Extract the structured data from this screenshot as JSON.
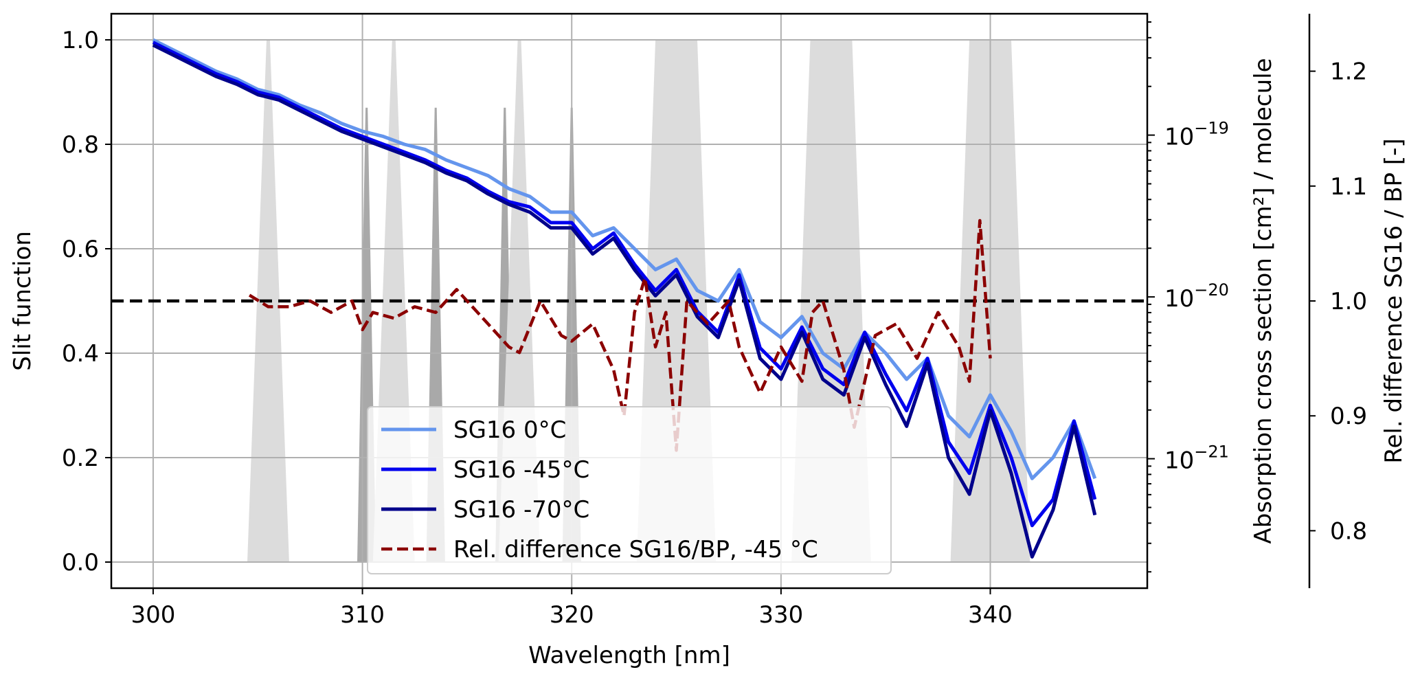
{
  "chart_data": {
    "type": "line",
    "xlabel": "Wavelength [nm]",
    "ylabel_left": "Slit function",
    "ylabel_right1": "Absorption cross section [cm²] / molecule",
    "ylabel_right2": "Rel. difference SG16 / BP [-]",
    "xlim": [
      298,
      347.5
    ],
    "ylim_left": [
      -0.05,
      1.05
    ],
    "ylim_right1_log10": [
      -21.8,
      -18.25
    ],
    "ylim_right2": [
      0.75,
      1.25
    ],
    "grid": true,
    "legend_position": "lower-center",
    "x_ticks": [
      "300",
      "310",
      "320",
      "330",
      "340"
    ],
    "y_left_ticks": [
      "0.0",
      "0.2",
      "0.4",
      "0.6",
      "0.8",
      "1.0"
    ],
    "y_right1_ticks": [
      {
        "base": "10",
        "exp": "−21",
        "log10": -21
      },
      {
        "base": "10",
        "exp": "−20",
        "log10": -20
      },
      {
        "base": "10",
        "exp": "−19",
        "log10": -19
      }
    ],
    "y_right2_ticks": [
      "0.8",
      "0.9",
      "1.0",
      "1.1",
      "1.2"
    ],
    "reference_line": {
      "value": 0.5,
      "axis": "left",
      "color": "#000000",
      "style": "dashed"
    },
    "slit_functions": [
      {
        "center": 305.5,
        "base_half_width": 1.0,
        "top_half_width": 0.08,
        "peak": 1.0,
        "color": "#dcdcdc"
      },
      {
        "center": 310.2,
        "base_half_width": 0.45,
        "top_half_width": 0.05,
        "peak": 0.87,
        "color": "#a9a9a9"
      },
      {
        "center": 311.5,
        "base_half_width": 1.0,
        "top_half_width": 0.08,
        "peak": 1.0,
        "color": "#dcdcdc"
      },
      {
        "center": 313.5,
        "base_half_width": 0.45,
        "top_half_width": 0.05,
        "peak": 0.87,
        "color": "#a9a9a9"
      },
      {
        "center": 316.8,
        "base_half_width": 0.45,
        "top_half_width": 0.05,
        "peak": 0.87,
        "color": "#a9a9a9"
      },
      {
        "center": 317.5,
        "base_half_width": 1.0,
        "top_half_width": 0.08,
        "peak": 1.0,
        "color": "#dcdcdc"
      },
      {
        "center": 320.0,
        "base_half_width": 0.45,
        "top_half_width": 0.05,
        "peak": 0.87,
        "color": "#a9a9a9"
      },
      {
        "center": 325.0,
        "base_half_width": 1.9,
        "top_half_width": 1.0,
        "peak": 1.0,
        "color": "#dcdcdc"
      },
      {
        "center": 332.4,
        "base_half_width": 1.9,
        "top_half_width": 1.0,
        "peak": 1.0,
        "color": "#dcdcdc"
      },
      {
        "center": 340.0,
        "base_half_width": 1.9,
        "top_half_width": 1.0,
        "peak": 1.0,
        "color": "#dcdcdc"
      }
    ],
    "series": [
      {
        "name": "SG16 0°C",
        "color": "#6495ed",
        "style": "solid",
        "axis": "left",
        "x": [
          300,
          301,
          302,
          303,
          304,
          305,
          306,
          307,
          308,
          309,
          310,
          311,
          312,
          313,
          314,
          315,
          316,
          317,
          318,
          319,
          320,
          321,
          322,
          323,
          324,
          325,
          326,
          327,
          328,
          329,
          330,
          331,
          332,
          333,
          334,
          335,
          336,
          337,
          338,
          339,
          340,
          341,
          342,
          343,
          344,
          345
        ],
        "values": [
          1.0,
          0.98,
          0.96,
          0.94,
          0.925,
          0.905,
          0.895,
          0.875,
          0.86,
          0.84,
          0.825,
          0.815,
          0.8,
          0.79,
          0.77,
          0.755,
          0.74,
          0.715,
          0.7,
          0.67,
          0.67,
          0.625,
          0.64,
          0.6,
          0.56,
          0.58,
          0.52,
          0.5,
          0.56,
          0.46,
          0.43,
          0.47,
          0.4,
          0.37,
          0.44,
          0.4,
          0.35,
          0.39,
          0.28,
          0.24,
          0.32,
          0.25,
          0.16,
          0.2,
          0.27,
          0.16
        ]
      },
      {
        "name": "SG16 -45°C",
        "color": "#0000ee",
        "style": "solid",
        "axis": "left",
        "x": [
          300,
          301,
          302,
          303,
          304,
          305,
          306,
          307,
          308,
          309,
          310,
          311,
          312,
          313,
          314,
          315,
          316,
          317,
          318,
          319,
          320,
          321,
          322,
          323,
          324,
          325,
          326,
          327,
          328,
          329,
          330,
          331,
          332,
          333,
          334,
          335,
          336,
          337,
          338,
          339,
          340,
          341,
          342,
          343,
          344,
          345
        ],
        "values": [
          0.995,
          0.975,
          0.955,
          0.935,
          0.92,
          0.9,
          0.89,
          0.87,
          0.85,
          0.83,
          0.815,
          0.8,
          0.785,
          0.77,
          0.75,
          0.735,
          0.71,
          0.69,
          0.68,
          0.65,
          0.65,
          0.6,
          0.63,
          0.57,
          0.52,
          0.56,
          0.48,
          0.44,
          0.55,
          0.41,
          0.37,
          0.45,
          0.37,
          0.34,
          0.44,
          0.36,
          0.29,
          0.39,
          0.23,
          0.17,
          0.3,
          0.2,
          0.07,
          0.12,
          0.27,
          0.12
        ]
      },
      {
        "name": "SG16 -70°C",
        "color": "#00008b",
        "style": "solid",
        "axis": "left",
        "x": [
          300,
          301,
          302,
          303,
          304,
          305,
          306,
          307,
          308,
          309,
          310,
          311,
          312,
          313,
          314,
          315,
          316,
          317,
          318,
          319,
          320,
          321,
          322,
          323,
          324,
          325,
          326,
          327,
          328,
          329,
          330,
          331,
          332,
          333,
          334,
          335,
          336,
          337,
          338,
          339,
          340,
          341,
          342,
          343,
          344,
          345
        ],
        "values": [
          0.99,
          0.97,
          0.95,
          0.93,
          0.915,
          0.895,
          0.885,
          0.865,
          0.845,
          0.825,
          0.81,
          0.795,
          0.78,
          0.765,
          0.745,
          0.73,
          0.705,
          0.685,
          0.67,
          0.64,
          0.64,
          0.59,
          0.62,
          0.56,
          0.51,
          0.55,
          0.47,
          0.43,
          0.54,
          0.39,
          0.35,
          0.44,
          0.35,
          0.32,
          0.43,
          0.34,
          0.26,
          0.38,
          0.2,
          0.13,
          0.29,
          0.17,
          0.01,
          0.1,
          0.26,
          0.09
        ]
      },
      {
        "name": "Rel. difference SG16/BP, -45 °C",
        "color": "#8b0000",
        "style": "dashed",
        "axis": "right2",
        "x": [
          304.6,
          305.5,
          306.5,
          307.5,
          308.5,
          309.5,
          310.0,
          310.5,
          311.5,
          312.5,
          313.5,
          314.5,
          315.0,
          316.0,
          317.0,
          317.5,
          318.5,
          319.5,
          320.0,
          321.0,
          322.0,
          322.5,
          323.0,
          323.5,
          324.0,
          324.5,
          325.0,
          325.5,
          326.5,
          327.5,
          328.0,
          329.0,
          330.0,
          331.0,
          331.5,
          332.0,
          333.0,
          333.5,
          334.5,
          335.5,
          336.5,
          337.5,
          338.5,
          339.0,
          339.5,
          340.0
        ],
        "values": [
          1.005,
          0.995,
          0.995,
          1.0,
          0.99,
          1.0,
          0.975,
          0.99,
          0.985,
          0.995,
          0.99,
          1.01,
          1.0,
          0.98,
          0.96,
          0.955,
          1.0,
          0.97,
          0.965,
          0.98,
          0.94,
          0.9,
          0.99,
          1.02,
          0.96,
          0.99,
          0.87,
          1.0,
          0.98,
          1.0,
          0.96,
          0.92,
          0.96,
          0.93,
          0.99,
          1.0,
          0.94,
          0.89,
          0.97,
          0.98,
          0.95,
          0.99,
          0.96,
          0.93,
          1.07,
          0.95
        ]
      }
    ]
  }
}
